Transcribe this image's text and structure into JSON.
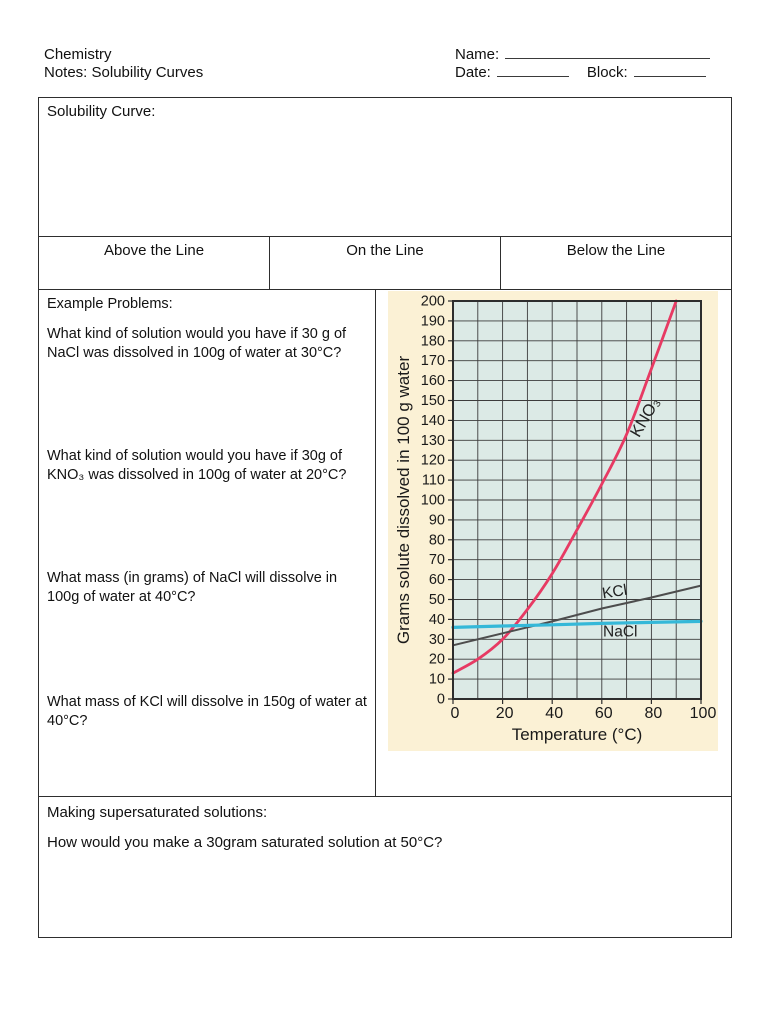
{
  "header": {
    "course": "Chemistry",
    "title": "Notes: Solubility Curves",
    "name_label": "Name:",
    "date_label": "Date:",
    "block_label": "Block:"
  },
  "solubility_curve": {
    "label": "Solubility Curve:"
  },
  "line_table": {
    "columns": [
      "Above the Line",
      "On the Line",
      "Below the Line"
    ]
  },
  "examples": {
    "heading": "Example Problems:",
    "questions": [
      "What kind of solution would you have if 30 g of NaCl was dissolved in 100g of water at 30°C?",
      "What kind of solution would you have if 30g of KNO₃ was dissolved in 100g of water at 20°C?",
      "What mass (in grams) of NaCl will dissolve in 100g of water at 40°C?",
      "What mass of KCl will dissolve in 150g of water at 40°C?"
    ]
  },
  "supersaturated": {
    "heading": "Making supersaturated solutions:",
    "question": "How would you make a 30gram saturated solution at 50°C?"
  },
  "chart_data": {
    "type": "line",
    "title": "",
    "xlabel": "Temperature (°C)",
    "ylabel": "Grams solute dissolved in 100 g water",
    "xlim": [
      0,
      100
    ],
    "ylim": [
      0,
      200
    ],
    "x_tick_labels": [
      0,
      20,
      40,
      60,
      80,
      100
    ],
    "y_tick_step": 10,
    "grid": true,
    "grid_step_x": 10,
    "grid_step_y": 10,
    "legend_position": "labels-on-lines",
    "colors": {
      "canvas_bg": "#fbf1d5",
      "plot_bg": "#dceae6",
      "frame": "#2d2d2d",
      "grid": "#3c3c3c",
      "text": "#1a1a1a"
    },
    "series": [
      {
        "name": "KNO₃",
        "color": "#e73a63",
        "width": 2.8,
        "smooth": true,
        "x": [
          0,
          10,
          20,
          30,
          40,
          50,
          60,
          70,
          80,
          90
        ],
        "values": [
          13,
          20,
          30,
          45,
          63,
          85,
          108,
          133,
          166,
          200
        ]
      },
      {
        "name": "KCl",
        "color": "#4d4d4d",
        "width": 2,
        "smooth": false,
        "x": [
          0,
          20,
          40,
          60,
          80,
          100
        ],
        "values": [
          27,
          33,
          39,
          45.5,
          51,
          57
        ]
      },
      {
        "name": "NaCl",
        "color": "#35b8d8",
        "width": 3.2,
        "smooth": false,
        "x": [
          0,
          20,
          40,
          60,
          80,
          100
        ],
        "values": [
          36,
          36.7,
          37.3,
          38,
          38.5,
          39
        ]
      }
    ],
    "labels": [
      {
        "text": "KNO₃",
        "x": 75,
        "y": 131,
        "rot": -60,
        "size": 16.5
      },
      {
        "text": "KCl",
        "x": 60.5,
        "y": 50.5,
        "rot": -9,
        "size": 15.5
      },
      {
        "text": "NaCl",
        "x": 60.5,
        "y": 31.5,
        "rot": 0,
        "size": 15.5
      }
    ]
  }
}
